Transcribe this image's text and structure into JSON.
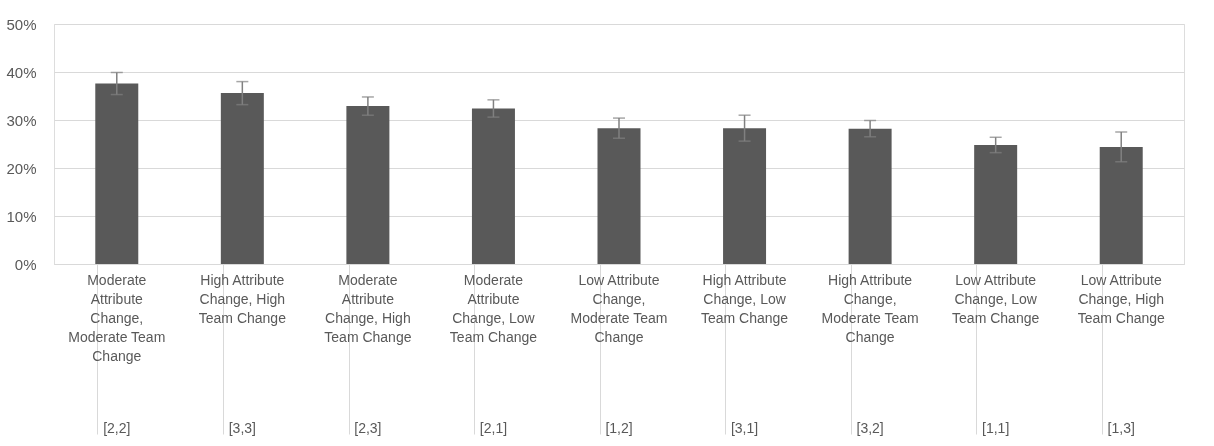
{
  "chart_data": {
    "type": "bar",
    "categories": [
      "Moderate Attribute Change, Moderate Team Change",
      "High Attribute Change, High Team Change",
      "Moderate Attribute Change, High Team Change",
      "Moderate Attribute Change, Low Team Change",
      "Low Attribute Change, Moderate Team Change",
      "High Attribute Change, Low Team Change",
      "High Attribute Change, Moderate Team Change",
      "Low Attribute Change, Low Team Change",
      "Low Attribute Change, High Team Change"
    ],
    "values": [
      37.6,
      35.6,
      32.9,
      32.4,
      28.3,
      28.3,
      28.2,
      24.8,
      24.4
    ],
    "errors": [
      2.3,
      2.4,
      1.9,
      1.8,
      2.1,
      2.7,
      1.7,
      1.6,
      3.1
    ],
    "color": "#595959",
    "ylim": [
      0,
      50
    ],
    "yticks": [
      {
        "value": 0,
        "label": "0%"
      },
      {
        "value": 10,
        "label": "10%"
      },
      {
        "value": 20,
        "label": "20%"
      },
      {
        "value": 30,
        "label": "30%"
      },
      {
        "value": 40,
        "label": "40%"
      },
      {
        "value": 50,
        "label": "50%"
      }
    ],
    "grid": "y",
    "annotations": [
      "[2,2]",
      "[3,3]",
      "[2,3]",
      "[2,1]",
      "[1,2]",
      "[3,1]",
      "[3,2]",
      "[1,1]",
      "[1,3]"
    ]
  }
}
